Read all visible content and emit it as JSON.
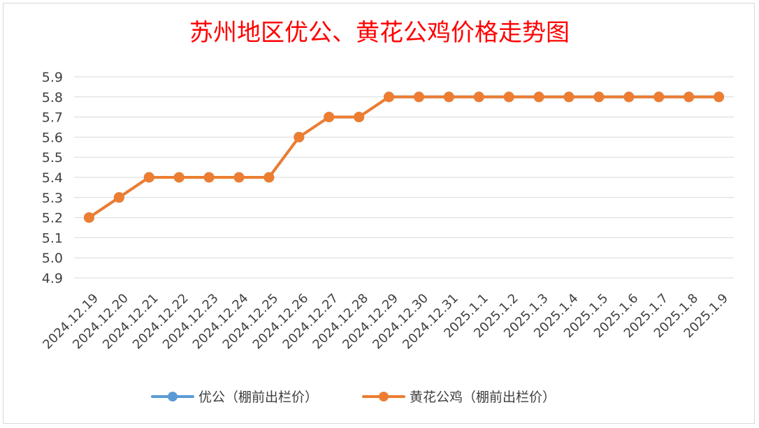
{
  "chart_data": {
    "type": "line",
    "title": "苏州地区优公、黄花公鸡价格走势图",
    "xlabel": "",
    "ylabel": "",
    "ylim": [
      4.9,
      5.9
    ],
    "yticks": [
      "5.9",
      "5.8",
      "5.7",
      "5.6",
      "5.5",
      "5.4",
      "5.3",
      "5.2",
      "5.1",
      "5.0",
      "4.9"
    ],
    "grid": true,
    "legend_position": "bottom",
    "categories": [
      "2024.12.19",
      "2024.12.20",
      "2024.12.21",
      "2024.12.22",
      "2024.12.23",
      "2024.12.24",
      "2024.12.25",
      "2024.12.26",
      "2024.12.27",
      "2024.12.28",
      "2024.12.29",
      "2024.12.30",
      "2024.12.31",
      "2025.1.1",
      "2025.1.2",
      "2025.1.3",
      "2025.1.4",
      "2025.1.5",
      "2025.1.6",
      "2025.1.7",
      "2025.1.8",
      "2025.1.9"
    ],
    "series": [
      {
        "name": "优公（棚前出栏价）",
        "color": "#5b9bd5",
        "values": [
          5.2,
          5.3,
          5.4,
          5.4,
          5.4,
          5.4,
          5.4,
          5.6,
          5.7,
          5.7,
          5.8,
          5.8,
          5.8,
          5.8,
          5.8,
          5.8,
          5.8,
          5.8,
          5.8,
          5.8,
          5.8,
          5.8
        ]
      },
      {
        "name": "黄花公鸡（棚前出栏价）",
        "color": "#ed7d31",
        "values": [
          5.2,
          5.3,
          5.4,
          5.4,
          5.4,
          5.4,
          5.4,
          5.6,
          5.7,
          5.7,
          5.8,
          5.8,
          5.8,
          5.8,
          5.8,
          5.8,
          5.8,
          5.8,
          5.8,
          5.8,
          5.8,
          5.8
        ]
      }
    ]
  }
}
